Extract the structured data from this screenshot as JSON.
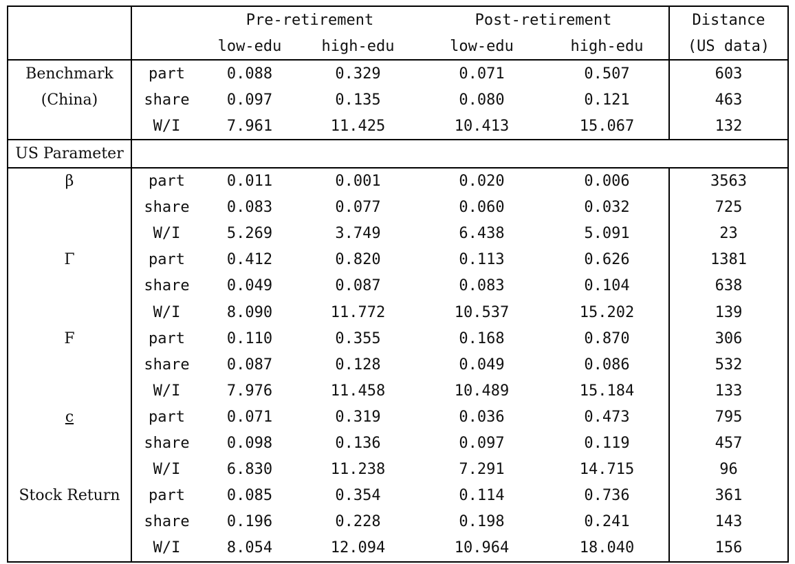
{
  "header": {
    "pre": "Pre-retirement",
    "post": "Post-retirement",
    "distance": "Distance",
    "us_data": "(US data)",
    "low": "low-edu",
    "high": "high-edu"
  },
  "benchmark": {
    "label1": "Benchmark",
    "label2": "(China)",
    "rows": [
      {
        "m": "part",
        "v": [
          "0.088",
          "0.329",
          "0.071",
          "0.507",
          "603"
        ]
      },
      {
        "m": "share",
        "v": [
          "0.097",
          "0.135",
          "0.080",
          "0.121",
          "463"
        ]
      },
      {
        "m": "W/I",
        "v": [
          "7.961",
          "11.425",
          "10.413",
          "15.067",
          "132"
        ]
      }
    ]
  },
  "us_parameter_label": "US Parameter",
  "groups": [
    {
      "label": "β",
      "rows": [
        {
          "m": "part",
          "v": [
            "0.011",
            "0.001",
            "0.020",
            "0.006",
            "3563"
          ]
        },
        {
          "m": "share",
          "v": [
            "0.083",
            "0.077",
            "0.060",
            "0.032",
            "725"
          ]
        },
        {
          "m": "W/I",
          "v": [
            "5.269",
            "3.749",
            "6.438",
            "5.091",
            "23"
          ]
        }
      ]
    },
    {
      "label": "Γ",
      "rows": [
        {
          "m": "part",
          "v": [
            "0.412",
            "0.820",
            "0.113",
            "0.626",
            "1381"
          ]
        },
        {
          "m": "share",
          "v": [
            "0.049",
            "0.087",
            "0.083",
            "0.104",
            "638"
          ]
        },
        {
          "m": "W/I",
          "v": [
            "8.090",
            "11.772",
            "10.537",
            "15.202",
            "139"
          ]
        }
      ]
    },
    {
      "label": "F",
      "rows": [
        {
          "m": "part",
          "v": [
            "0.110",
            "0.355",
            "0.168",
            "0.870",
            "306"
          ]
        },
        {
          "m": "share",
          "v": [
            "0.087",
            "0.128",
            "0.049",
            "0.086",
            "532"
          ]
        },
        {
          "m": "W/I",
          "v": [
            "7.976",
            "11.458",
            "10.489",
            "15.184",
            "133"
          ]
        }
      ]
    },
    {
      "label": "c",
      "rows": [
        {
          "m": "part",
          "v": [
            "0.071",
            "0.319",
            "0.036",
            "0.473",
            "795"
          ]
        },
        {
          "m": "share",
          "v": [
            "0.098",
            "0.136",
            "0.097",
            "0.119",
            "457"
          ]
        },
        {
          "m": "W/I",
          "v": [
            "6.830",
            "11.238",
            "7.291",
            "14.715",
            "96"
          ]
        }
      ]
    },
    {
      "label": "Stock Return",
      "rows": [
        {
          "m": "part",
          "v": [
            "0.085",
            "0.354",
            "0.114",
            "0.736",
            "361"
          ]
        },
        {
          "m": "share",
          "v": [
            "0.196",
            "0.228",
            "0.198",
            "0.241",
            "143"
          ]
        },
        {
          "m": "W/I",
          "v": [
            "8.054",
            "12.094",
            "10.964",
            "18.040",
            "156"
          ]
        }
      ]
    }
  ]
}
